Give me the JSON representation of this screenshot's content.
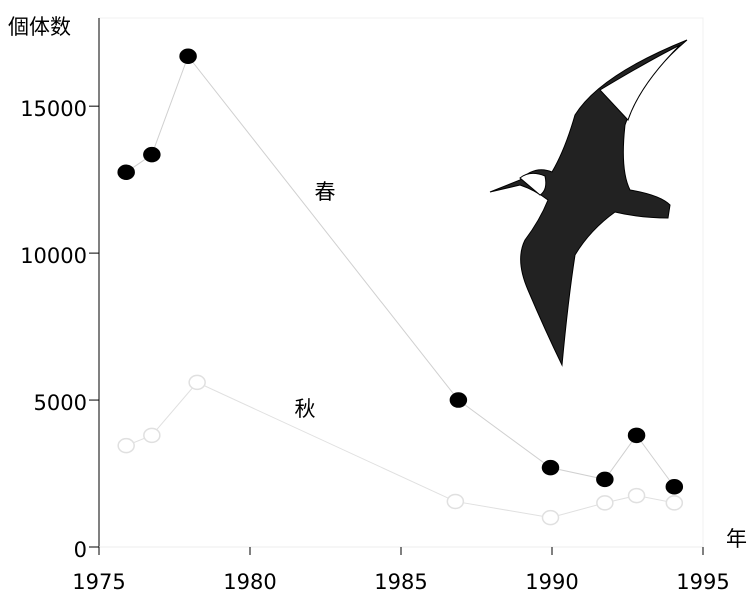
{
  "chart_data": {
    "type": "line",
    "y_label": "個体数",
    "x_label": "年",
    "xlim": [
      1975,
      1995
    ],
    "xticks": [
      1975,
      1980,
      1985,
      1990,
      1995
    ],
    "ylim": [
      0,
      18000
    ],
    "yticks": [
      0,
      5000,
      10000,
      15000
    ],
    "series": [
      {
        "name": "春",
        "color": "#000000",
        "line_color": "#d0d0d0",
        "filled": true,
        "x": [
          1975.9,
          1976.75,
          1977.95,
          1986.9,
          1989.95,
          1991.75,
          1992.8,
          1994.05
        ],
        "values": [
          12750,
          13350,
          16700,
          5000,
          2700,
          2300,
          3800,
          2050
        ]
      },
      {
        "name": "秋",
        "color": "#e0e0e0",
        "line_color": "#e0e0e0",
        "filled": false,
        "x": [
          1975.9,
          1976.75,
          1978.25,
          1986.8,
          1989.95,
          1991.75,
          1992.8,
          1994.05
        ],
        "values": [
          3450,
          3800,
          5600,
          1550,
          1000,
          1500,
          1750,
          1500
        ]
      }
    ]
  }
}
